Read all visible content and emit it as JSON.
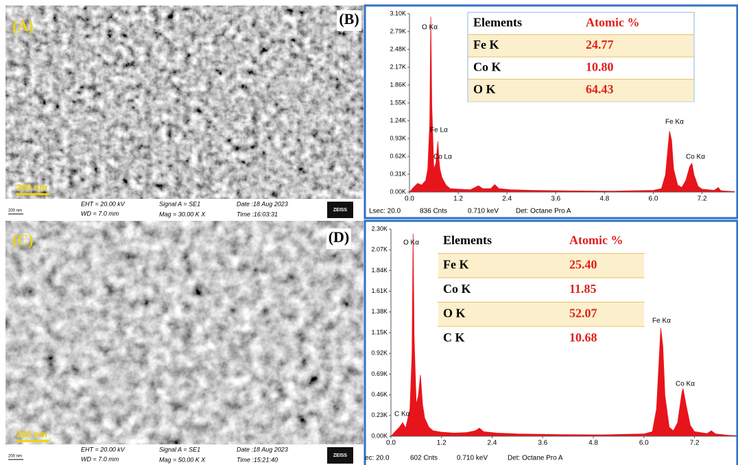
{
  "sem": [
    {
      "label": "(A)",
      "scale_bar": "200 nm",
      "info": {
        "tiny_scale": "200 nm",
        "eht": "EHT = 20.00 kV",
        "wd": "WD = 7.0 mm",
        "signal": "Signal A = SE1",
        "mag": "Mag = 30.00 K X",
        "date": "Date :18 Aug 2023",
        "time": "Time :16:03:31",
        "brand": "ZEISS"
      }
    },
    {
      "label": "(C)",
      "scale_bar": "200 nm",
      "info": {
        "tiny_scale": "200 nm",
        "eht": "EHT = 20.00 kV",
        "wd": "WD = 7.0 mm",
        "signal": "Signal A = SE1",
        "mag": "Mag = 50.00 K X",
        "date": "Date :18 Aug 2023",
        "time": "Time :15:21:40",
        "brand": "ZEISS"
      }
    }
  ],
  "chart_data": [
    {
      "type": "area",
      "panel_label": "(B)",
      "color": "#e8141b",
      "x": [
        0,
        0.1,
        0.2,
        0.3,
        0.4,
        0.45,
        0.5,
        0.525,
        0.55,
        0.6,
        0.65,
        0.7,
        0.72,
        0.75,
        0.8,
        0.9,
        1.0,
        1.2,
        1.5,
        1.7,
        1.8,
        2.0,
        2.1,
        2.2,
        2.5,
        3.0,
        4.0,
        5.0,
        6.0,
        6.2,
        6.3,
        6.4,
        6.45,
        6.5,
        6.6,
        6.7,
        6.8,
        6.9,
        6.95,
        7.0,
        7.1,
        7.2,
        7.5,
        7.6,
        7.65,
        7.7,
        8.0
      ],
      "values": [
        0,
        80,
        150,
        120,
        200,
        400,
        1200,
        3050,
        1500,
        400,
        500,
        880,
        600,
        400,
        250,
        120,
        60,
        50,
        40,
        110,
        60,
        60,
        130,
        60,
        40,
        30,
        20,
        15,
        30,
        60,
        300,
        1060,
        900,
        400,
        120,
        80,
        200,
        450,
        500,
        300,
        100,
        50,
        30,
        80,
        30,
        20,
        10
      ],
      "xlim": [
        0,
        8.0
      ],
      "xticks": [
        {
          "value": 0,
          "label": "0.0"
        },
        1.2,
        2.4,
        3.6,
        4.8,
        {
          "value": 6,
          "label": "6.0"
        },
        7.2
      ],
      "ylim": [
        0,
        3100
      ],
      "yticks": [
        {
          "value": 0,
          "label": "0.00K"
        },
        {
          "value": 310,
          "label": "0.31K"
        },
        {
          "value": 620,
          "label": "0.62K"
        },
        {
          "value": 930,
          "label": "0.93K"
        },
        {
          "value": 1240,
          "label": "1.24K"
        },
        {
          "value": 1550,
          "label": "1.55K"
        },
        {
          "value": 1860,
          "label": "1.86K"
        },
        {
          "value": 2170,
          "label": "2.17K"
        },
        {
          "value": 2480,
          "label": "2.48K"
        },
        {
          "value": 2790,
          "label": "2.79K"
        },
        {
          "value": 3100,
          "label": "3.10K"
        }
      ],
      "annotations": [
        "O Kα",
        "Fe Lα",
        "Co Lα",
        "Fe Kα",
        "Co Kα"
      ],
      "table": {
        "header": [
          "Elements",
          "Atomic %"
        ],
        "rows": [
          [
            "Fe K",
            "24.77"
          ],
          [
            "Co K",
            "10.80"
          ],
          [
            "O K",
            "64.43"
          ]
        ]
      },
      "footer": [
        "Lsec: 20.0",
        "836 Cnts",
        "0.710 keV",
        "Det: Octane Pro A"
      ]
    },
    {
      "type": "area",
      "panel_label": "(D)",
      "color": "#e8141b",
      "x": [
        0,
        0.1,
        0.2,
        0.28,
        0.35,
        0.45,
        0.5,
        0.525,
        0.55,
        0.6,
        0.65,
        0.7,
        0.75,
        0.8,
        0.9,
        1.0,
        1.2,
        1.5,
        1.8,
        2.0,
        2.1,
        2.2,
        2.5,
        3.0,
        4.0,
        5.0,
        6.0,
        6.2,
        6.3,
        6.4,
        6.45,
        6.5,
        6.6,
        6.7,
        6.8,
        6.9,
        6.93,
        7.0,
        7.1,
        7.2,
        7.5,
        7.6,
        7.7,
        8.0,
        8.2
      ],
      "values": [
        0,
        50,
        100,
        150,
        90,
        300,
        900,
        2250,
        1100,
        350,
        450,
        680,
        350,
        200,
        100,
        60,
        45,
        35,
        40,
        60,
        90,
        50,
        35,
        25,
        18,
        15,
        25,
        50,
        300,
        1200,
        1000,
        450,
        100,
        60,
        150,
        480,
        530,
        350,
        120,
        50,
        30,
        60,
        25,
        10,
        5
      ],
      "xlim": [
        0,
        8.2
      ],
      "xticks": [
        {
          "value": 0,
          "label": "0.0"
        },
        1.2,
        2.4,
        3.6,
        4.8,
        {
          "value": 6,
          "label": "6.0"
        },
        7.2
      ],
      "ylim": [
        0,
        2300
      ],
      "yticks": [
        {
          "value": 0,
          "label": "0.00K"
        },
        {
          "value": 230,
          "label": "0.23K"
        },
        {
          "value": 460,
          "label": "0.46K"
        },
        {
          "value": 690,
          "label": "0.69K"
        },
        {
          "value": 920,
          "label": "0.92K"
        },
        {
          "value": 1150,
          "label": "1.15K"
        },
        {
          "value": 1380,
          "label": "1.38K"
        },
        {
          "value": 1610,
          "label": "1.61K"
        },
        {
          "value": 1840,
          "label": "1.84K"
        },
        {
          "value": 2070,
          "label": "2.07K"
        },
        {
          "value": 2300,
          "label": "2.30K"
        }
      ],
      "annotations": [
        "O Kα",
        "C Kα",
        "Fe Kα",
        "Co Kα"
      ],
      "table": {
        "header": [
          "Elements",
          "Atomic %"
        ],
        "rows": [
          [
            "Fe K",
            "25.40"
          ],
          [
            "Co K",
            "11.85"
          ],
          [
            "O K",
            "52.07"
          ],
          [
            "C K",
            "10.68"
          ]
        ]
      },
      "footer": [
        "ec: 20.0",
        "602 Cnts",
        "0.710 keV",
        "Det: Octane Pro A"
      ]
    }
  ]
}
